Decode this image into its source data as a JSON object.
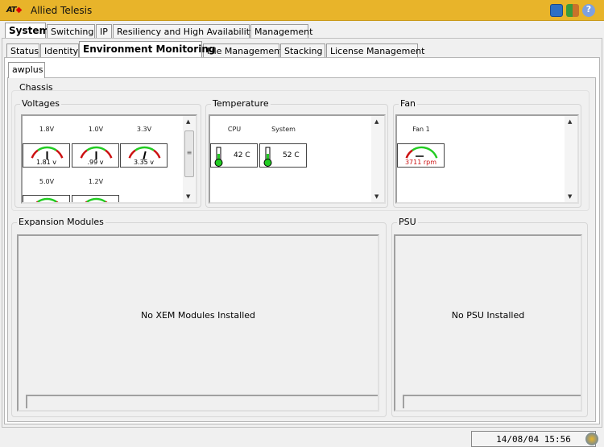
{
  "app": {
    "title": "Allied Telesis",
    "logo": "ATI"
  },
  "main_tabs": [
    "System",
    "Switching",
    "IP",
    "Resiliency and High Availability",
    "Management"
  ],
  "sub_tabs": [
    "Status",
    "Identity",
    "Environment Monitoring",
    "File Management",
    "Stacking",
    "License Management"
  ],
  "device_tab": "awplus",
  "chassis": {
    "label": "Chassis",
    "voltages": {
      "label": "Voltages",
      "sensors": [
        {
          "name": "1.8V",
          "value": "1.81 v"
        },
        {
          "name": "1.0V",
          "value": ".99 v"
        },
        {
          "name": "3.3V",
          "value": "3.35 v"
        },
        {
          "name": "5.0V",
          "value": ""
        },
        {
          "name": "1.2V",
          "value": ""
        }
      ]
    },
    "temperature": {
      "label": "Temperature",
      "sensors": [
        {
          "name": "CPU",
          "value": "42 C"
        },
        {
          "name": "System",
          "value": "52 C"
        }
      ]
    },
    "fan": {
      "label": "Fan",
      "sensors": [
        {
          "name": "Fan 1",
          "value": "3711 rpm"
        }
      ]
    }
  },
  "expansion": {
    "label": "Expansion Modules",
    "message": "No XEM Modules Installed"
  },
  "psu": {
    "label": "PSU",
    "message": "No PSU Installed"
  },
  "status": {
    "datetime": "14/08/04 15:56"
  },
  "colors": {
    "titlebar": "#e8b42a",
    "gauge_ok": "#22cc22",
    "gauge_warn": "#cc1111",
    "fan_value": "#cc1111"
  },
  "icons": [
    "save-icon",
    "exit-icon",
    "help-icon",
    "refresh-icon"
  ]
}
